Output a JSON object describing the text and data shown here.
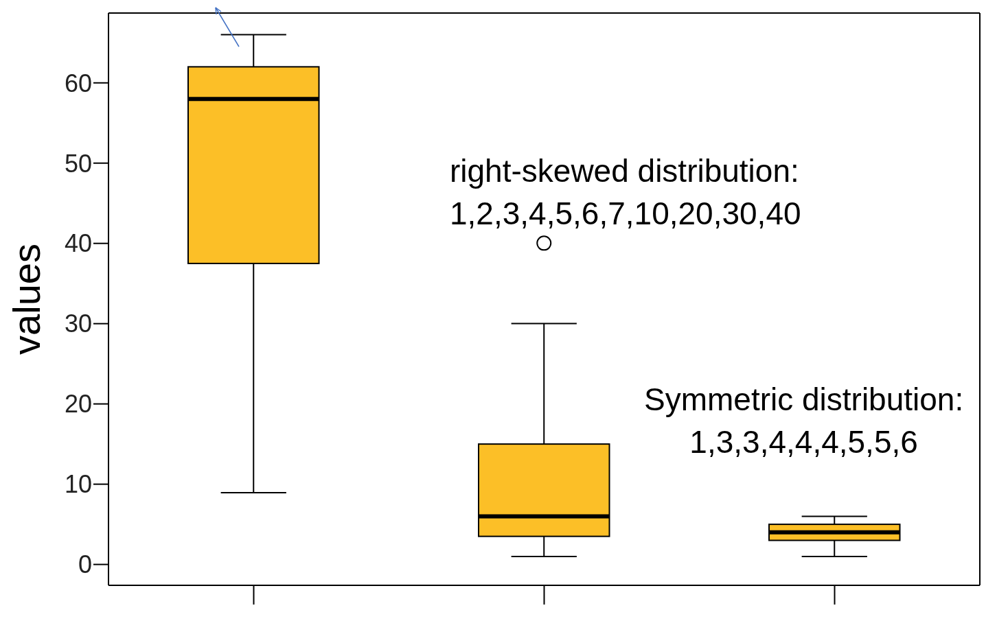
{
  "chart_data": {
    "type": "box",
    "ylabel": "values",
    "categories": [
      null,
      null,
      null
    ],
    "color": "#fcbf27",
    "boxes": [
      {
        "low": 9,
        "q1": 37.5,
        "median": 58,
        "q3": 62,
        "high": 66
      },
      {
        "low": 1,
        "q1": 3.5,
        "median": 6,
        "q3": 15,
        "high": 30,
        "outliers": [
          40
        ]
      },
      {
        "low": 1,
        "q1": 3,
        "median": 4,
        "q3": 5,
        "high": 6
      }
    ],
    "ylim": [
      -2.6,
      68.7
    ],
    "yticks": [
      0,
      10,
      20,
      30,
      40,
      50,
      60
    ],
    "annotations": [
      "right-skewed distribution:\n1,2,3,4,5,6,7,10,20,30,40",
      "Symmetric distribution:\n1,3,3,4,4,4,5,5,6"
    ]
  }
}
